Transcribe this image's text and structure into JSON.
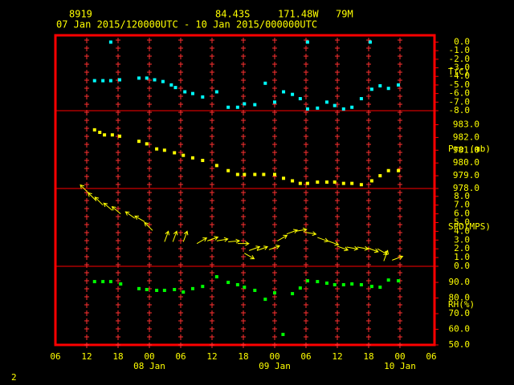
{
  "header": {
    "station": "8919",
    "lat": "84.43S",
    "lon": "171.48W",
    "elev": "79M",
    "period": "07 Jan 2015/120000UTC - 10 Jan 2015/000000UTC",
    "page": "2"
  },
  "chart_data": [
    {
      "type": "scatter",
      "ylabel": "T(C)",
      "color": "#00ffff",
      "ylim": [
        -8,
        0.7
      ],
      "yticks": [
        {
          "value": 0,
          "label": "0.0"
        },
        {
          "value": -1,
          "label": "-1.0"
        },
        {
          "value": -2,
          "label": "-2.0"
        },
        {
          "value": -3,
          "label": "-3.0"
        },
        {
          "value": -4,
          "label": "-4.0"
        },
        {
          "value": -5,
          "label": "-5.0"
        },
        {
          "value": -6,
          "label": "-6.0"
        },
        {
          "value": -7,
          "label": "-7.0"
        },
        {
          "value": -8,
          "label": "-8.0"
        }
      ],
      "x": [
        7.5,
        9.1,
        10.6,
        10.6,
        12.3,
        16,
        17.5,
        19,
        20.6,
        22.2,
        23,
        24.8,
        26.3,
        28.2,
        30.9,
        33.1,
        34.9,
        36.2,
        38.2,
        40.2,
        42,
        43.7,
        45.4,
        46.9,
        48.3,
        48.3,
        50.2,
        52,
        53.5,
        55.2,
        56.8,
        58.6,
        60.3,
        60.6,
        62.2,
        63.8,
        65.7
      ],
      "values": [
        -4.5,
        -4.5,
        -4.5,
        0,
        -4.4,
        -4.2,
        -4.2,
        -4.4,
        -4.6,
        -5,
        -5.3,
        -5.8,
        -6,
        -6.4,
        -5.8,
        -7.6,
        -7.6,
        -7.2,
        -7.3,
        -4.8,
        -7,
        -5.8,
        -6.1,
        -6.6,
        -7.8,
        0,
        -7.7,
        -7,
        -7.4,
        -7.8,
        -7.6,
        -6.6,
        0,
        -5.5,
        -5.1,
        -5.4,
        -5
      ]
    },
    {
      "type": "scatter",
      "ylabel": "Pre (mb)",
      "color": "#ffff00",
      "ylim": [
        978,
        984.1
      ],
      "yticks": [
        {
          "value": 983,
          "label": "983.0"
        },
        {
          "value": 982,
          "label": "982.0"
        },
        {
          "value": 981,
          "label": "981.0"
        },
        {
          "value": 980,
          "label": "980.0"
        },
        {
          "value": 979,
          "label": "979.0"
        },
        {
          "value": 978,
          "label": "978.0"
        }
      ],
      "x": [
        7.5,
        8.5,
        9.4,
        10.9,
        12.3,
        16,
        17.5,
        19.4,
        20.9,
        22.8,
        24.5,
        26.3,
        28.2,
        30.9,
        33.1,
        34.9,
        36.2,
        38.2,
        39.9,
        42,
        43.7,
        45.4,
        46.9,
        48.3,
        50.2,
        52,
        53.5,
        55.2,
        56.8,
        58.6,
        60.6,
        62.2,
        63.8,
        65.7
      ],
      "values": [
        982.6,
        982.4,
        982.2,
        982.2,
        982.1,
        981.7,
        981.5,
        981.1,
        981,
        980.8,
        980.6,
        980.4,
        980.2,
        979.8,
        979.4,
        979.1,
        979.1,
        979.1,
        979.1,
        979.1,
        978.8,
        978.6,
        978.4,
        978.4,
        978.5,
        978.5,
        978.5,
        978.4,
        978.4,
        978.3,
        978.6,
        979,
        979.4,
        979.4
      ]
    },
    {
      "type": "wind",
      "ylabel": "SPD(MPS)",
      "color": "#ffff00",
      "ylim": [
        0,
        8.9
      ],
      "yticks": [
        {
          "value": 8,
          "label": "8.0"
        },
        {
          "value": 7,
          "label": "7.0"
        },
        {
          "value": 6,
          "label": "6.0"
        },
        {
          "value": 5,
          "label": "5.0"
        },
        {
          "value": 4,
          "label": "4.0"
        },
        {
          "value": 3,
          "label": "3.0"
        },
        {
          "value": 2,
          "label": "2.0"
        },
        {
          "value": 1,
          "label": "1.0"
        },
        {
          "value": 0,
          "label": "0.0"
        }
      ],
      "x": [
        6.3,
        7.8,
        9.1,
        10.9,
        12.5,
        15.2,
        17.1,
        18.6,
        20.9,
        22.5,
        24.5,
        27.1,
        29.1,
        30.9,
        33.1,
        34.9,
        36.2,
        37.1,
        38.6,
        40.9,
        42.5,
        44.3,
        46,
        47.8,
        50.2,
        52.2,
        54,
        55.8,
        57.8,
        59.8,
        61.7,
        62.9,
        64.5
      ],
      "values": [
        8.4,
        7.5,
        7,
        6.4,
        6,
        5.5,
        5.1,
        4.1,
        2.8,
        2.8,
        2.8,
        2.6,
        2.9,
        2.9,
        2.8,
        2.6,
        1.5,
        1.8,
        1.8,
        1.9,
        2.9,
        3.7,
        4,
        3.9,
        3.3,
        2.9,
        2.3,
        2.2,
        2.2,
        2.1,
        2,
        0.6,
        0.7
      ],
      "direction": [
        135,
        135,
        135,
        130,
        130,
        125,
        120,
        135,
        200,
        200,
        200,
        240,
        250,
        260,
        265,
        270,
        300,
        250,
        250,
        250,
        240,
        250,
        260,
        280,
        290,
        290,
        290,
        280,
        280,
        290,
        300,
        200,
        250
      ]
    },
    {
      "type": "scatter",
      "ylabel": "RH(%)",
      "color": "#00ff00",
      "ylim": [
        50,
        100.3
      ],
      "yticks": [
        {
          "value": 90,
          "label": "90.0"
        },
        {
          "value": 80,
          "label": "80.0"
        },
        {
          "value": 70,
          "label": "70.0"
        },
        {
          "value": 60,
          "label": "60.0"
        },
        {
          "value": 50,
          "label": "50.0"
        }
      ],
      "x": [
        7.5,
        9.1,
        10.6,
        12.5,
        16,
        17.5,
        19.4,
        20.9,
        22.8,
        24.5,
        26.3,
        28.2,
        30.9,
        33.1,
        34.9,
        36.2,
        38.2,
        40.2,
        42,
        43.6,
        45.4,
        46.9,
        48.3,
        50.2,
        52,
        53.5,
        55.2,
        56.8,
        58.6,
        60.6,
        62.2,
        63.8,
        65.7
      ],
      "values": [
        90.5,
        90.5,
        90.5,
        89,
        86,
        85.4,
        84.9,
        84.9,
        85.4,
        83.8,
        86,
        87.4,
        93.6,
        90,
        88.5,
        86.9,
        84.9,
        79.2,
        83.3,
        56.7,
        82.8,
        86.4,
        91,
        90.5,
        89.5,
        88.5,
        88.5,
        89,
        88.5,
        87.4,
        86.9,
        91.5,
        91
      ],
      "xlim": [
        0,
        72
      ],
      "xticks": [
        {
          "value": 0,
          "label": "06"
        },
        {
          "value": 6,
          "label": "12"
        },
        {
          "value": 12,
          "label": "18"
        },
        {
          "value": 18,
          "label": "00"
        },
        {
          "value": 24,
          "label": "06"
        },
        {
          "value": 30,
          "label": "12"
        },
        {
          "value": 36,
          "label": "18"
        },
        {
          "value": 42,
          "label": "00"
        },
        {
          "value": 48,
          "label": "06"
        },
        {
          "value": 54,
          "label": "12"
        },
        {
          "value": 60,
          "label": "18"
        },
        {
          "value": 66,
          "label": "00"
        },
        {
          "value": 72,
          "label": "06"
        }
      ],
      "date_ticks": [
        {
          "value": 18,
          "label": "08 Jan"
        },
        {
          "value": 42,
          "label": "09 Jan"
        },
        {
          "value": 66,
          "label": "10 Jan"
        }
      ]
    }
  ]
}
